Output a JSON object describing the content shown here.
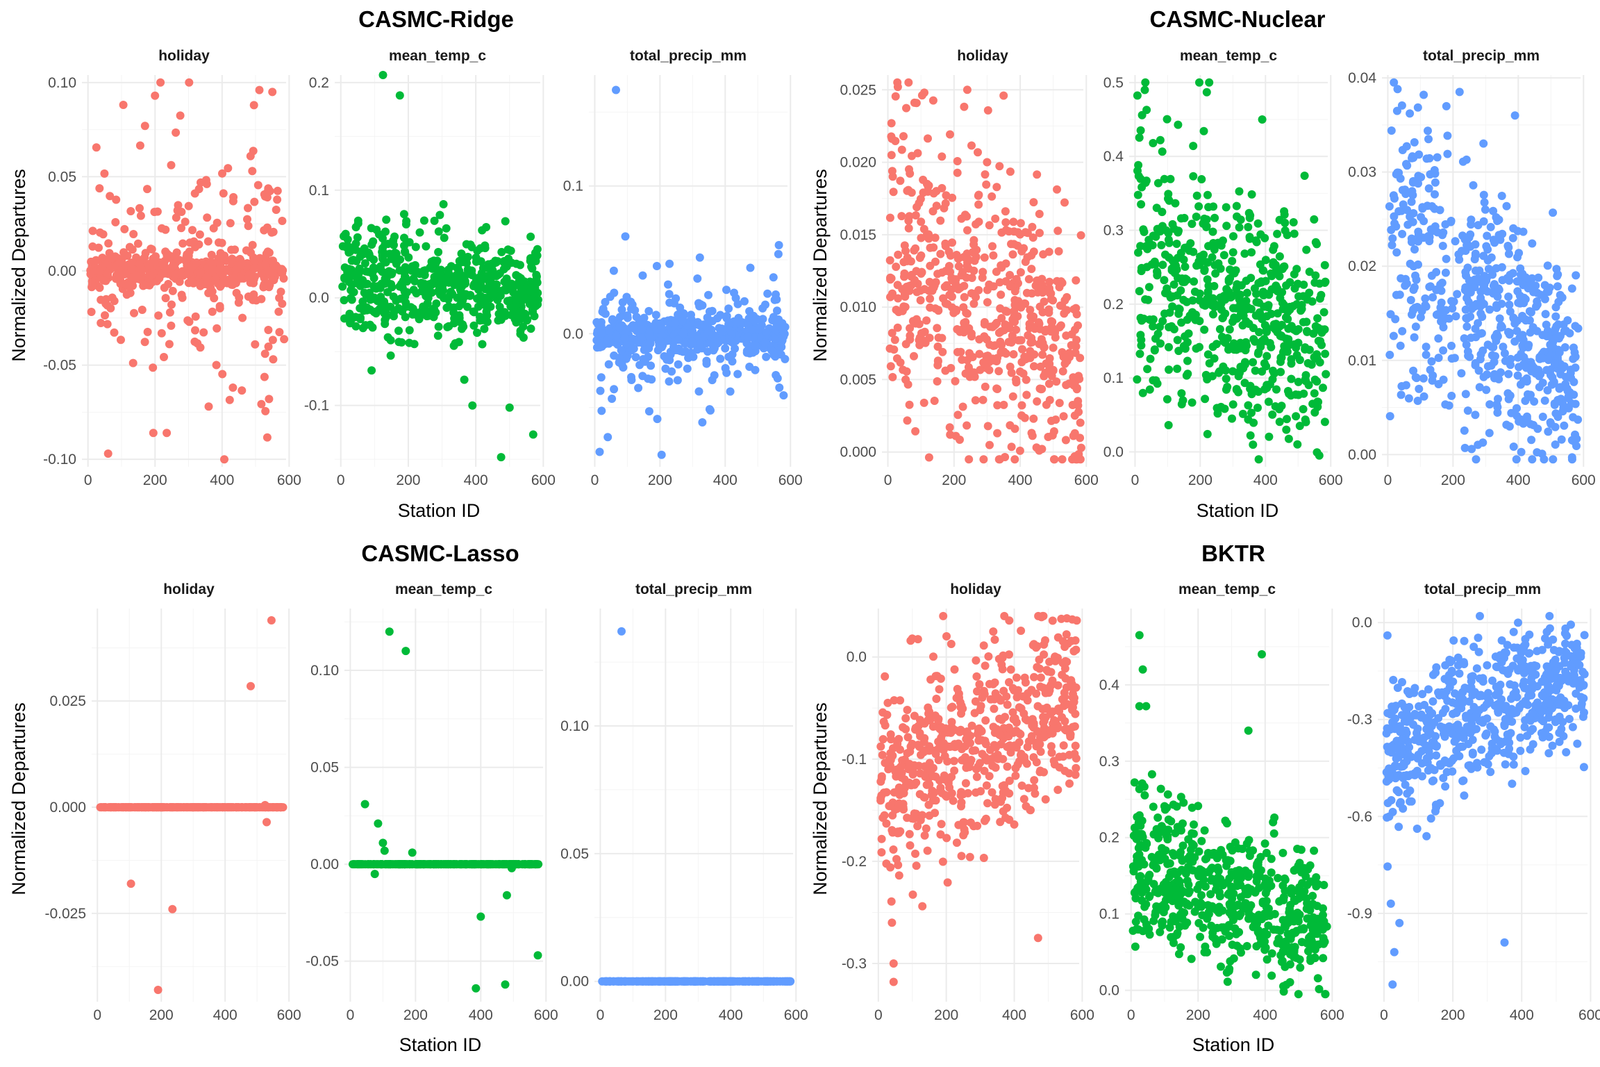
{
  "chart_data": [
    {
      "type": "scatter",
      "title": "CASMC-Ridge",
      "xlabel": "Station ID",
      "ylabel": "Normalized Departures",
      "x_range": [
        0,
        600
      ],
      "facets": [
        {
          "strip": "holiday",
          "color": "#F8766D",
          "ylim": [
            -0.1,
            0.1
          ],
          "y_ticks": [
            {
              "value": -0.1,
              "label": "-0.10"
            },
            {
              "value": -0.05,
              "label": "-0.05"
            },
            {
              "value": 0,
              "label": "0.00"
            },
            {
              "value": 0.05,
              "label": "0.05"
            },
            {
              "value": 0.1,
              "label": "0.10"
            }
          ],
          "cloud": {
            "n": 560,
            "pattern": "spiky",
            "center": [
              0,
              0
            ],
            "spread": [
              0.004,
              0.004
            ],
            "mid": 0.6,
            "out_scale": 0.035,
            "out_frac": 0.3
          },
          "outliers": [
            [
              200,
              0.093
            ],
            [
              550,
              0.095
            ],
            [
              495,
              0.088
            ],
            [
              170,
              0.077
            ],
            [
              60,
              -0.097
            ],
            [
              195,
              -0.086
            ],
            [
              235,
              -0.086
            ],
            [
              360,
              -0.072
            ],
            [
              540,
              -0.068
            ]
          ]
        },
        {
          "strip": "mean_temp_c",
          "color": "#00BA38",
          "ylim": [
            -0.15,
            0.2
          ],
          "y_ticks": [
            {
              "value": -0.1,
              "label": "-0.1"
            },
            {
              "value": 0,
              "label": "0.0"
            },
            {
              "value": 0.1,
              "label": "0.1"
            },
            {
              "value": 0.2,
              "label": "0.2"
            }
          ],
          "cloud": {
            "n": 580,
            "pattern": "trend",
            "center": [
              0.02,
              0.005
            ],
            "spread": [
              0.03,
              0.02
            ]
          },
          "outliers": [
            [
              125,
              0.207
            ],
            [
              175,
              0.188
            ],
            [
              475,
              -0.148
            ],
            [
              570,
              -0.127
            ],
            [
              390,
              -0.1
            ],
            [
              500,
              -0.102
            ]
          ]
        },
        {
          "strip": "total_precip_mm",
          "color": "#619CFF",
          "ylim": [
            -0.085,
            0.17
          ],
          "y_ticks": [
            {
              "value": 0,
              "label": "0.0"
            },
            {
              "value": 0.1,
              "label": "0.1"
            }
          ],
          "cloud": {
            "n": 580,
            "pattern": "spiky",
            "center": [
              0,
              0
            ],
            "spread": [
              0.006,
              0.006
            ],
            "mid": 0.55,
            "out_scale": 0.025,
            "out_frac": 0.2
          },
          "outliers": [
            [
              65,
              0.165
            ],
            [
              15,
              -0.08
            ],
            [
              205,
              -0.082
            ],
            [
              40,
              -0.07
            ],
            [
              330,
              -0.06
            ]
          ]
        }
      ]
    },
    {
      "type": "scatter",
      "title": "CASMC-Nuclear",
      "xlabel": "Station ID",
      "ylabel": "Normalized Departures",
      "x_range": [
        0,
        600
      ],
      "facets": [
        {
          "strip": "holiday",
          "color": "#F8766D",
          "ylim": [
            -0.0005,
            0.0255
          ],
          "y_ticks": [
            {
              "value": 0,
              "label": "0.000"
            },
            {
              "value": 0.005,
              "label": "0.005"
            },
            {
              "value": 0.01,
              "label": "0.010"
            },
            {
              "value": 0.015,
              "label": "0.015"
            },
            {
              "value": 0.02,
              "label": "0.020"
            },
            {
              "value": 0.025,
              "label": "0.025"
            }
          ],
          "cloud": {
            "n": 600,
            "pattern": "trend",
            "center": [
              0.014,
              0.006
            ],
            "spread": [
              0.0055,
              0.004
            ]
          },
          "outliers": [
            [
              30,
              0.0252
            ],
            [
              110,
              0.0248
            ],
            [
              240,
              0.025
            ],
            [
              350,
              0.0246
            ],
            [
              565,
              -0.0003
            ]
          ]
        },
        {
          "strip": "mean_temp_c",
          "color": "#00BA38",
          "ylim": [
            -0.01,
            0.5
          ],
          "y_ticks": [
            {
              "value": 0,
              "label": "0.0"
            },
            {
              "value": 0.1,
              "label": "0.1"
            },
            {
              "value": 0.2,
              "label": "0.2"
            },
            {
              "value": 0.3,
              "label": "0.3"
            },
            {
              "value": 0.4,
              "label": "0.4"
            },
            {
              "value": 0.5,
              "label": "0.5"
            }
          ],
          "cloud": {
            "n": 600,
            "pattern": "trend",
            "center": [
              0.27,
              0.12
            ],
            "spread": [
              0.1,
              0.07
            ]
          },
          "outliers": [
            [
              30,
              0.49
            ],
            [
              220,
              0.487
            ],
            [
              390,
              0.45
            ],
            [
              565,
              -0.005
            ]
          ]
        },
        {
          "strip": "total_precip_mm",
          "color": "#619CFF",
          "ylim": [
            -0.0005,
            0.0395
          ],
          "y_ticks": [
            {
              "value": 0,
              "label": "0.00"
            },
            {
              "value": 0.01,
              "label": "0.01"
            },
            {
              "value": 0.02,
              "label": "0.02"
            },
            {
              "value": 0.03,
              "label": "0.03"
            },
            {
              "value": 0.04,
              "label": "0.04"
            }
          ],
          "cloud": {
            "n": 600,
            "pattern": "trend",
            "center": [
              0.023,
              0.008
            ],
            "spread": [
              0.008,
              0.005
            ]
          },
          "outliers": [
            [
              30,
              0.0388
            ],
            [
              220,
              0.0385
            ],
            [
              110,
              0.0382
            ],
            [
              390,
              0.036
            ],
            [
              565,
              -0.0003
            ]
          ]
        }
      ]
    },
    {
      "type": "scatter",
      "title": "CASMC-Lasso",
      "xlabel": "Station ID",
      "ylabel": "Normalized Departures",
      "x_range": [
        0,
        600
      ],
      "facets": [
        {
          "strip": "holiday",
          "color": "#F8766D",
          "ylim": [
            -0.044,
            0.045
          ],
          "y_ticks": [
            {
              "value": -0.025,
              "label": "-0.025"
            },
            {
              "value": 0,
              "label": "0.000"
            },
            {
              "value": 0.025,
              "label": "0.025"
            }
          ],
          "cloud": {
            "n": 300,
            "pattern": "line",
            "center": [
              0,
              0
            ]
          },
          "outliers": [
            [
              545,
              0.044
            ],
            [
              480,
              0.0285
            ],
            [
              105,
              -0.018
            ],
            [
              235,
              -0.024
            ],
            [
              190,
              -0.043
            ],
            [
              525,
              0.0005
            ],
            [
              530,
              -0.0035
            ]
          ]
        },
        {
          "strip": "mean_temp_c",
          "color": "#00BA38",
          "ylim": [
            -0.067,
            0.128
          ],
          "y_ticks": [
            {
              "value": -0.05,
              "label": "-0.05"
            },
            {
              "value": 0,
              "label": "0.00"
            },
            {
              "value": 0.05,
              "label": "0.05"
            },
            {
              "value": 0.1,
              "label": "0.10"
            }
          ],
          "cloud": {
            "n": 300,
            "pattern": "line",
            "center": [
              0,
              0
            ]
          },
          "outliers": [
            [
              120,
              0.12
            ],
            [
              170,
              0.11
            ],
            [
              45,
              0.031
            ],
            [
              85,
              0.021
            ],
            [
              100,
              0.011
            ],
            [
              105,
              0.007
            ],
            [
              190,
              0.006
            ],
            [
              75,
              -0.005
            ],
            [
              400,
              -0.027
            ],
            [
              495,
              -0.002
            ],
            [
              480,
              -0.016
            ],
            [
              385,
              -0.064
            ],
            [
              475,
              -0.062
            ],
            [
              575,
              -0.047
            ]
          ]
        },
        {
          "strip": "total_precip_mm",
          "color": "#619CFF",
          "ylim": [
            -0.005,
            0.143
          ],
          "y_ticks": [
            {
              "value": 0,
              "label": "0.00"
            },
            {
              "value": 0.05,
              "label": "0.05"
            },
            {
              "value": 0.1,
              "label": "0.10"
            }
          ],
          "cloud": {
            "n": 300,
            "pattern": "line",
            "center": [
              0,
              0
            ]
          },
          "outliers": [
            [
              65,
              0.137
            ]
          ]
        }
      ]
    },
    {
      "type": "scatter",
      "title": "BKTR",
      "xlabel": "Station ID",
      "ylabel": "Normalized Departures",
      "x_range": [
        0,
        600
      ],
      "facets": [
        {
          "strip": "holiday",
          "color": "#F8766D",
          "ylim": [
            -0.33,
            0.04
          ],
          "y_ticks": [
            {
              "value": -0.3,
              "label": "-0.3"
            },
            {
              "value": -0.2,
              "label": "-0.2"
            },
            {
              "value": -0.1,
              "label": "-0.1"
            },
            {
              "value": 0,
              "label": "0.0"
            }
          ],
          "cloud": {
            "n": 600,
            "pattern": "trend",
            "center": [
              -0.13,
              -0.04
            ],
            "spread": [
              0.045,
              0.045
            ]
          },
          "outliers": [
            [
              45,
              -0.318
            ],
            [
              45,
              -0.3
            ],
            [
              40,
              -0.26
            ],
            [
              470,
              -0.275
            ],
            [
              480,
              0.039
            ],
            [
              100,
              0.018
            ],
            [
              95,
              0.016
            ]
          ]
        },
        {
          "strip": "mean_temp_c",
          "color": "#00BA38",
          "ylim": [
            -0.005,
            0.49
          ],
          "y_ticks": [
            {
              "value": 0,
              "label": "0.0"
            },
            {
              "value": 0.1,
              "label": "0.1"
            },
            {
              "value": 0.2,
              "label": "0.2"
            },
            {
              "value": 0.3,
              "label": "0.3"
            },
            {
              "value": 0.4,
              "label": "0.4"
            }
          ],
          "cloud": {
            "n": 600,
            "pattern": "trend",
            "center": [
              0.17,
              0.08
            ],
            "spread": [
              0.05,
              0.04
            ]
          },
          "outliers": [
            [
              25,
              0.465
            ],
            [
              35,
              0.42
            ],
            [
              25,
              0.372
            ],
            [
              45,
              0.372
            ],
            [
              390,
              0.44
            ],
            [
              350,
              0.34
            ]
          ]
        },
        {
          "strip": "total_precip_mm",
          "color": "#619CFF",
          "ylim": [
            -1.15,
            0.02
          ],
          "y_ticks": [
            {
              "value": -0.9,
              "label": "-0.9"
            },
            {
              "value": -0.6,
              "label": "-0.6"
            },
            {
              "value": -0.3,
              "label": "-0.3"
            },
            {
              "value": 0,
              "label": "0.0"
            }
          ],
          "cloud": {
            "n": 600,
            "pattern": "trend",
            "center": [
              -0.4,
              -0.14
            ],
            "spread": [
              0.13,
              0.09
            ]
          },
          "outliers": [
            [
              25,
              -1.12
            ],
            [
              30,
              -1.02
            ],
            [
              45,
              -0.93
            ],
            [
              20,
              -0.87
            ],
            [
              350,
              -0.99
            ],
            [
              10,
              -0.04
            ]
          ]
        }
      ]
    }
  ]
}
